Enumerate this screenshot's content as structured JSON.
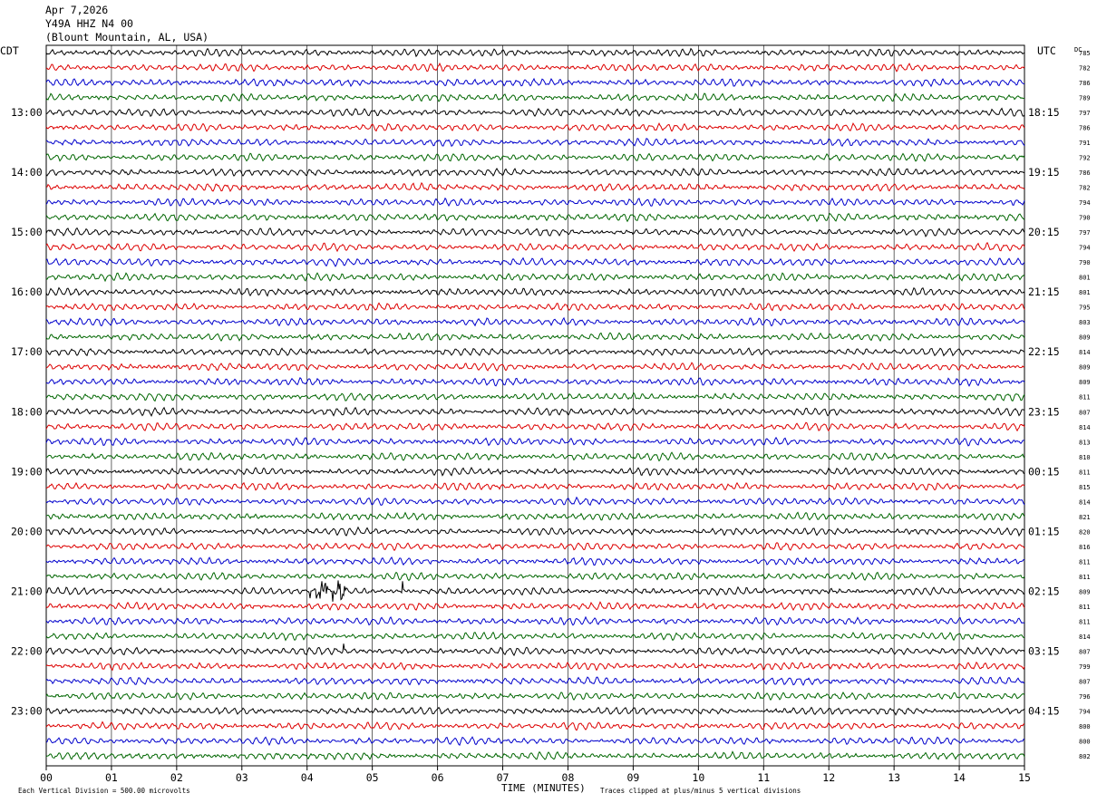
{
  "header": {
    "date": "Apr 7,2026",
    "station": "Y49A HHZ N4 00",
    "location": "(Blount Mountain, AL, USA)"
  },
  "chart_data": {
    "type": "line",
    "title": "Y49A HHZ N4 00",
    "left_tz": "CDT",
    "right_tz": "UTC",
    "dc_label": "DC",
    "xlabel": "TIME (MINUTES)",
    "x_ticks": [
      "00",
      "01",
      "02",
      "03",
      "04",
      "05",
      "06",
      "07",
      "08",
      "09",
      "10",
      "11",
      "12",
      "13",
      "14",
      "15"
    ],
    "xlim": [
      0,
      15
    ],
    "trace_colors": [
      "#000000",
      "#dd0000",
      "#0000cc",
      "#006600"
    ],
    "left_hour_labels": [
      "13:00",
      "14:00",
      "15:00",
      "16:00",
      "17:00",
      "18:00",
      "19:00",
      "20:00",
      "21:00",
      "22:00",
      "23:00"
    ],
    "right_hour_labels": [
      "18:15",
      "19:15",
      "20:15",
      "21:15",
      "22:15",
      "23:15",
      "00:15",
      "01:15",
      "02:15",
      "03:15",
      "04:15"
    ],
    "dc_values": [
      "785",
      "782",
      "786",
      "789",
      "797",
      "786",
      "791",
      "792",
      "786",
      "782",
      "794",
      "790",
      "797",
      "794",
      "790",
      "801",
      "801",
      "795",
      "803",
      "809",
      "814",
      "809",
      "809",
      "811",
      "807",
      "814",
      "813",
      "810",
      "811",
      "815",
      "814",
      "821",
      "820",
      "816",
      "811",
      "811",
      "809",
      "811",
      "811",
      "814",
      "807",
      "799",
      "807",
      "796",
      "794",
      "800",
      "800",
      "802"
    ],
    "events": [
      {
        "trace": 36,
        "x_min": [
          4.0,
          4.6
        ],
        "note": "clipped spikes"
      },
      {
        "trace": 36,
        "x_min": [
          5.35,
          5.5
        ],
        "note": "spike"
      },
      {
        "trace": 40,
        "x_min": [
          4.5,
          4.6
        ],
        "note": "small spike"
      }
    ],
    "vertical_division_note": "Each Vertical Division =  500.00 microvolts",
    "clip_note": "Traces clipped at plus/minus 5 vertical divisions",
    "grid": true
  }
}
